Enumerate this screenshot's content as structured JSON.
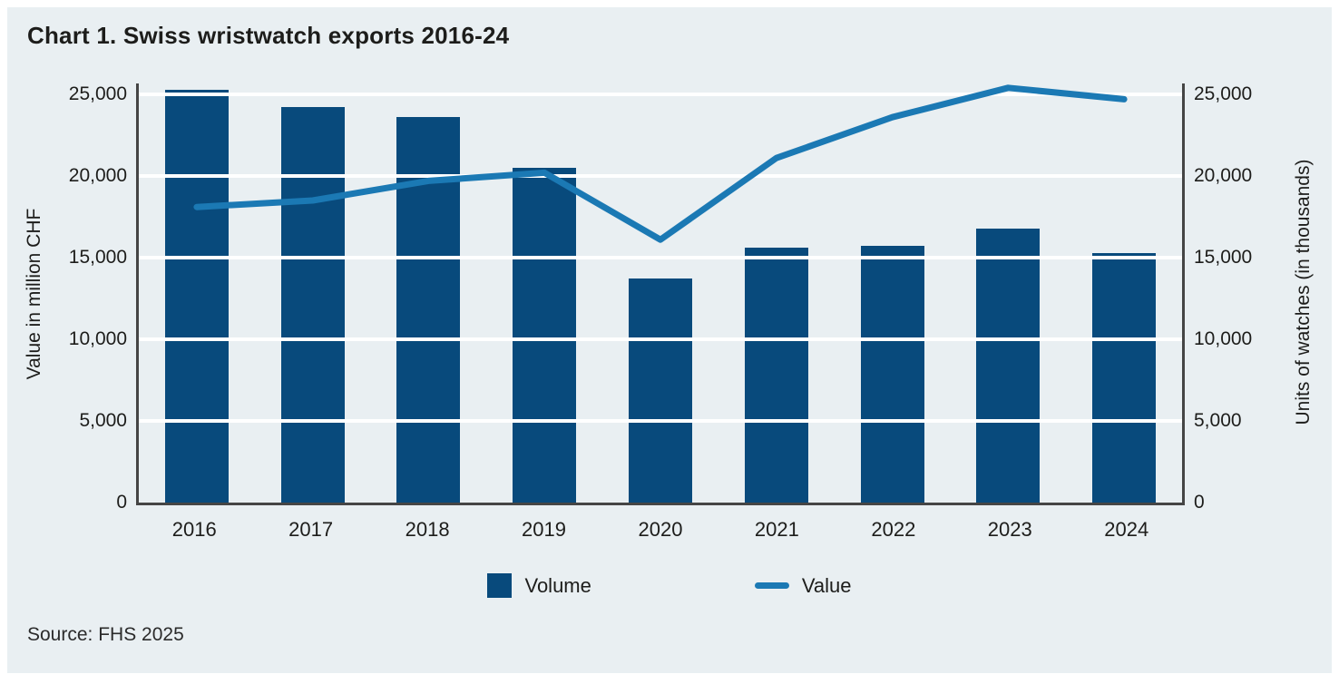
{
  "title": "Chart 1. Swiss wristwatch exports 2016-24",
  "source": "Source: FHS 2025",
  "colors": {
    "panel_background": "#e9eff2",
    "bar": "#084a7c",
    "line": "#1b79b4",
    "gridline": "#ffffff",
    "axis": "#454545",
    "text": "#1d1d1b"
  },
  "legend": {
    "position": "bottom-center",
    "items": [
      {
        "label": "Volume",
        "swatch": "square"
      },
      {
        "label": "Value",
        "swatch": "line"
      }
    ]
  },
  "chart_data": {
    "type": "bar",
    "subtype": "bar+line combo, dual axis (both axes share identical scale)",
    "title": "Chart 1. Swiss wristwatch exports 2016-24",
    "categories": [
      "2016",
      "2017",
      "2018",
      "2019",
      "2020",
      "2021",
      "2022",
      "2023",
      "2024"
    ],
    "series": [
      {
        "name": "Volume",
        "type": "bar",
        "axis": "right",
        "unit": "thousands of watches",
        "values": [
          25300,
          24200,
          23600,
          20500,
          13700,
          15600,
          15700,
          16800,
          15300
        ]
      },
      {
        "name": "Value",
        "type": "line",
        "axis": "left",
        "unit": "million CHF",
        "values": [
          18100,
          18500,
          19700,
          20200,
          16100,
          21100,
          23600,
          25400,
          24700
        ]
      }
    ],
    "left_axis_label": "Value in million CHF",
    "right_axis_label": "Units of watches (in thousands)",
    "ylim": [
      0,
      25000
    ],
    "ytick_step": 5000,
    "ytick_labels": [
      "0",
      "5,000",
      "10,000",
      "15,000",
      "20,000",
      "25,000"
    ],
    "grid": "horizontal white gridlines at each 5,000 step",
    "legend_position": "bottom-center"
  }
}
